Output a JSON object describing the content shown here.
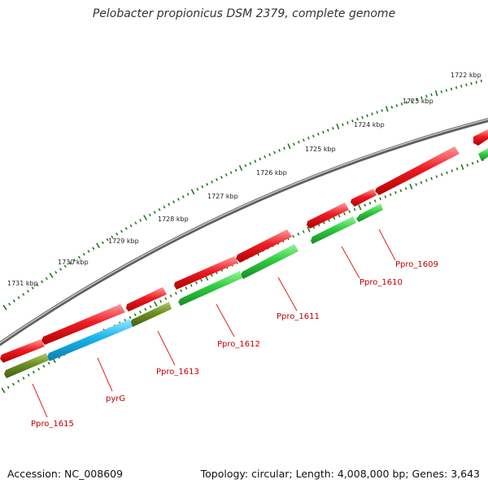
{
  "title": "Pelobacter propionicus DSM 2379, complete genome",
  "footer": {
    "accession": "Accession: NC_008609",
    "summary": "Topology: circular; Length: 4,008,000 bp; Genes: 3,643"
  },
  "colors": {
    "background": "#ffffff",
    "backbone": "#8a8a8a",
    "tick": "#1f7a1f",
    "tick_label": "#222222",
    "forward_gene": "#e8161c",
    "reverse_gene_green": "#2ecc40",
    "reverse_gene_olive": "#6b8e23",
    "reverse_gene_cyan": "#19b4ea",
    "gene_label": "#c00000"
  },
  "scale": {
    "labels": [
      "1722 kbp",
      "1723 kbp",
      "1724 kbp",
      "1725 kbp",
      "1726 kbp",
      "1727 kbp",
      "1728 kbp",
      "1729 kbp",
      "1730 kbp",
      "1731 kbp"
    ]
  },
  "forward_genes": [
    {
      "name": "forward-gene-1"
    },
    {
      "name": "forward-gene-2"
    },
    {
      "name": "forward-gene-3"
    },
    {
      "name": "forward-gene-4"
    },
    {
      "name": "forward-gene-5"
    },
    {
      "name": "forward-gene-6"
    },
    {
      "name": "forward-gene-7"
    },
    {
      "name": "forward-gene-8"
    },
    {
      "name": "forward-gene-9"
    }
  ],
  "reverse_genes": [
    {
      "label": "Ppro_1609",
      "color": "green"
    },
    {
      "label": "Ppro_1610",
      "color": "green"
    },
    {
      "label": "Ppro_1611",
      "color": "green"
    },
    {
      "label": "Ppro_1612",
      "color": "green"
    },
    {
      "label": "Ppro_1613",
      "color": "olive"
    },
    {
      "label": "pyrG",
      "color": "cyan"
    },
    {
      "label": "Ppro_1615",
      "color": "olive"
    },
    {
      "label": "",
      "color": "green"
    }
  ]
}
